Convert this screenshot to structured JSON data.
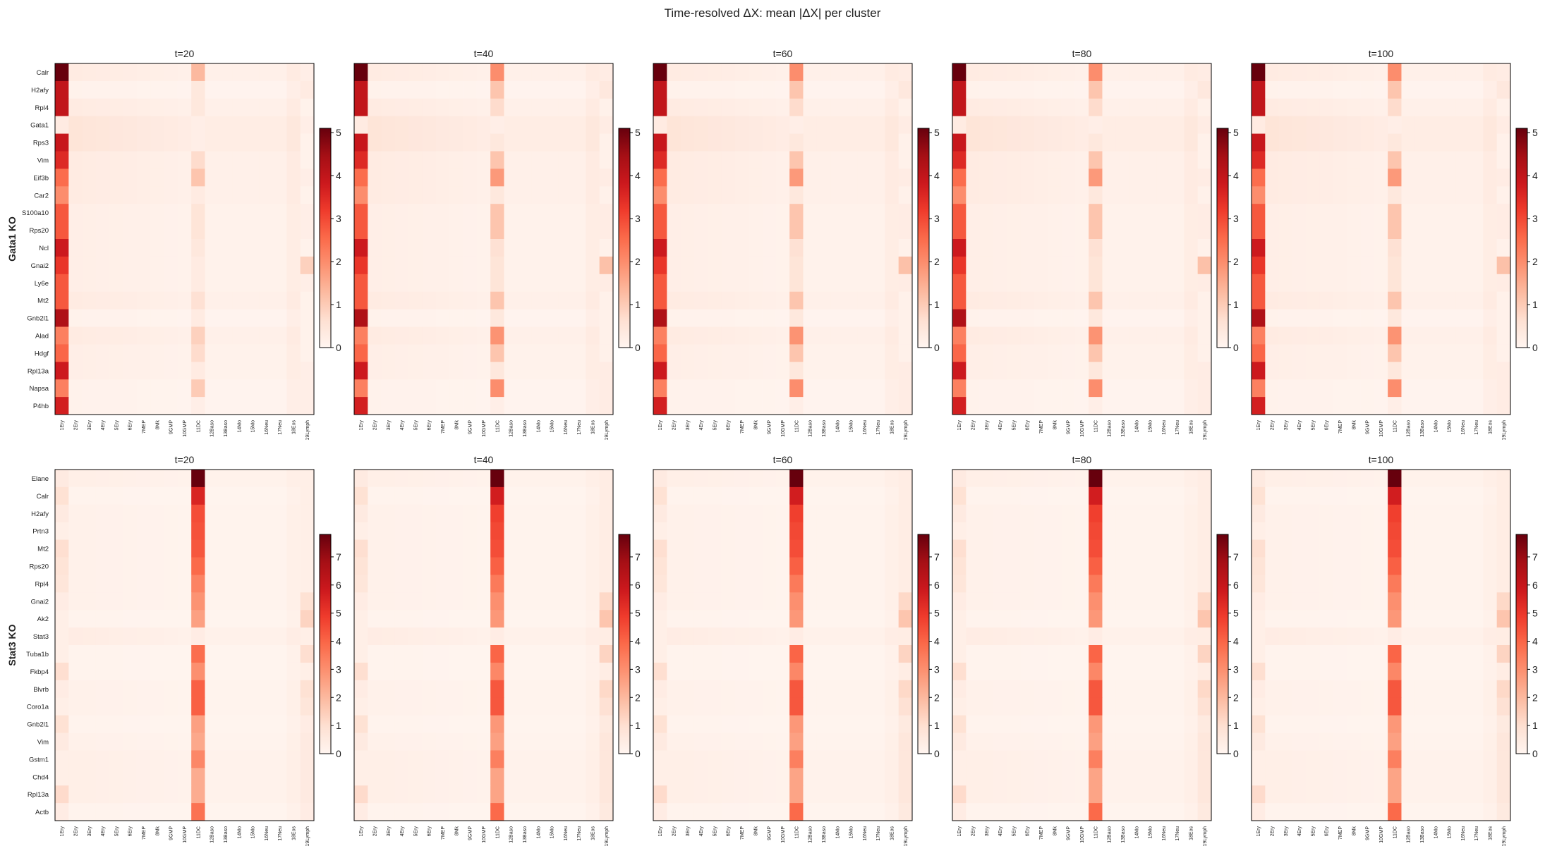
{
  "figure": {
    "title": "Time-resolved ΔX: mean |ΔX| per cluster"
  },
  "clusters": [
    "1Ery",
    "2Ery",
    "3Ery",
    "4Ery",
    "5Ery",
    "6Ery",
    "7MEP",
    "8Mk",
    "9GMP",
    "10GMP",
    "11DC",
    "12Baso",
    "13Baso",
    "14Mo",
    "15Mo",
    "16Neu",
    "17Neu",
    "18Eos",
    "19Lymph"
  ],
  "colors": {
    "cmap_low": "#fff5f0",
    "cmap_high": "#67000d",
    "frame": "#000000"
  },
  "chart_data": [
    {
      "type": "heatmap",
      "row_label": "Gata1 KO",
      "panel_titles": [
        "t=20",
        "t=40",
        "t=60",
        "t=80",
        "t=100"
      ],
      "genes": [
        "Calr",
        "H2afy",
        "Rpl4",
        "Gata1",
        "Rps3",
        "Vim",
        "Eif3b",
        "Car2",
        "S100a10",
        "Rps20",
        "Ncl",
        "Gnai2",
        "Ly6e",
        "Mt2",
        "Gnb2l1",
        "Alad",
        "Hdgf",
        "Rpl13a",
        "Napsa",
        "P4hb"
      ],
      "colorbar": {
        "vmin": 0,
        "vmax": 5.1,
        "ticks": [
          0,
          1,
          2,
          3,
          4,
          5
        ]
      },
      "col1_values": [
        5.1,
        4.0,
        4.0,
        0.3,
        3.9,
        3.5,
        2.5,
        2.0,
        2.8,
        2.8,
        3.8,
        3.3,
        2.8,
        2.8,
        4.3,
        2.2,
        2.6,
        3.8,
        2.2,
        3.7
      ],
      "dc_values_t20": [
        1.3,
        0.4,
        0.4,
        0.2,
        0.2,
        0.7,
        1.1,
        0.3,
        0.5,
        0.5,
        0.4,
        0.3,
        0.3,
        0.6,
        0.3,
        0.9,
        0.7,
        0.3,
        1.0,
        0.2
      ],
      "dc_values_late": [
        2.0,
        1.1,
        0.7,
        0.2,
        0.4,
        1.1,
        1.8,
        0.4,
        1.1,
        1.1,
        0.6,
        0.5,
        0.5,
        1.1,
        0.4,
        1.9,
        1.1,
        0.4,
        2.0,
        0.2
      ],
      "mid_shift": [
        0.3,
        0.1,
        0.3,
        0.5,
        0.5,
        0.3,
        0.3,
        0.3,
        0.2,
        0.2,
        0.2,
        0.2,
        0.2,
        0.3,
        0.1,
        0.3,
        0.2,
        0.2,
        0.1,
        0.1
      ],
      "lymph_values": [
        0.2,
        0.3,
        0.1,
        0.2,
        0.1,
        0.1,
        0.2,
        0.1,
        0.2,
        0.2,
        0.1,
        0.9,
        0.2,
        0.1,
        0.1,
        0.1,
        0.1,
        0.2,
        0.2,
        0.2
      ]
    },
    {
      "type": "heatmap",
      "row_label": "Stat3 KO",
      "panel_titles": [
        "t=20",
        "t=40",
        "t=60",
        "t=80",
        "t=100"
      ],
      "genes": [
        "Elane",
        "Calr",
        "H2afy",
        "Prtn3",
        "Mt2",
        "Rps20",
        "Rpl4",
        "Gnai2",
        "Ak2",
        "Stat3",
        "Tuba1b",
        "Fkbp4",
        "Blvrb",
        "Coro1a",
        "Gnb2l1",
        "Vim",
        "Gstm1",
        "Chd4",
        "Rpl13a",
        "Actb"
      ],
      "colorbar": {
        "vmin": 0,
        "vmax": 7.8,
        "ticks": [
          0,
          1,
          2,
          3,
          4,
          5,
          6,
          7
        ]
      },
      "col1_values": [
        0.5,
        0.9,
        0.5,
        0.3,
        1.0,
        0.8,
        0.7,
        0.4,
        0.3,
        0.3,
        0.3,
        1.0,
        0.4,
        0.3,
        0.9,
        0.5,
        0.3,
        0.3,
        1.1,
        0.4
      ],
      "dc_values_t20": [
        7.8,
        5.5,
        4.5,
        4.4,
        4.3,
        3.9,
        3.3,
        2.9,
        2.6,
        0.4,
        3.8,
        3.0,
        4.1,
        4.1,
        2.6,
        2.4,
        3.2,
        2.3,
        2.3,
        3.7
      ],
      "dc_values_late": [
        7.8,
        5.7,
        4.8,
        4.6,
        4.5,
        4.1,
        3.5,
        3.0,
        2.8,
        0.4,
        4.0,
        3.2,
        4.3,
        4.3,
        2.8,
        2.6,
        3.4,
        2.5,
        2.5,
        3.9
      ],
      "mid_shift": [
        0.3,
        0.1,
        0.2,
        0.2,
        0.2,
        0.2,
        0.2,
        0.2,
        0.1,
        0.4,
        0.1,
        0.1,
        0.2,
        0.2,
        0.1,
        0.2,
        0.3,
        0.3,
        0.3,
        0.1
      ],
      "lymph_values": [
        0.3,
        0.3,
        0.3,
        0.3,
        0.3,
        0.3,
        0.3,
        0.9,
        1.3,
        0.3,
        1.0,
        0.3,
        0.9,
        0.7,
        0.4,
        0.5,
        0.5,
        0.5,
        0.5,
        0.4
      ]
    }
  ]
}
